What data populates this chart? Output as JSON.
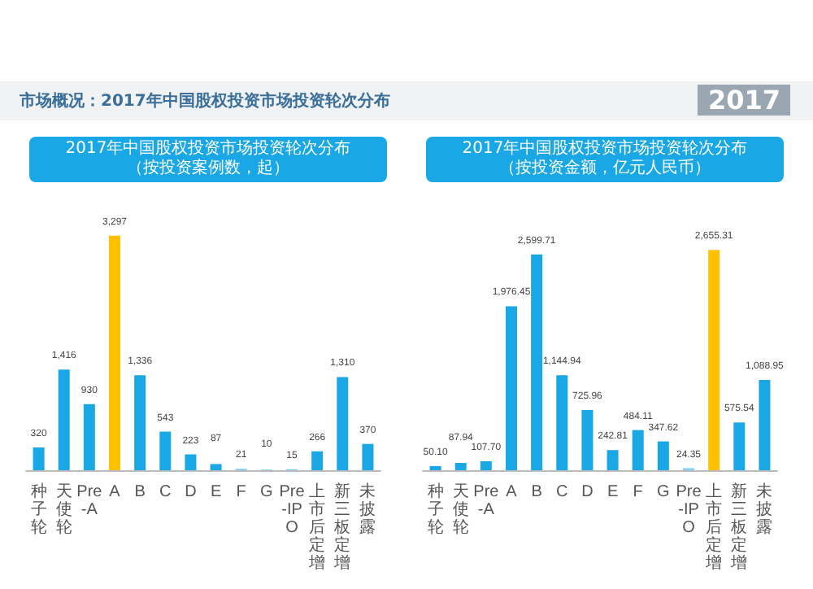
{
  "chart_data": [
    {
      "type": "bar",
      "title": "2017年中国股权投资市场投资轮次分布",
      "subtitle": "（按投资案例数，起）",
      "annotations": [
        "市场概况：2017年中国股权投资市场投资轮次分布",
        "2017"
      ],
      "categories": [
        "种子轮",
        "天使轮",
        "Pre-A",
        "A",
        "B",
        "C",
        "D",
        "E",
        "F",
        "G",
        "Pre-IPO",
        "上市后定增",
        "新三板定增",
        "未披露"
      ],
      "values": [
        320,
        1416,
        930,
        3297,
        1336,
        543,
        223,
        87,
        21,
        10,
        15,
        266,
        1310,
        370
      ],
      "colors": [
        "#1aa7e6",
        "#1aa7e6",
        "#1aa7e6",
        "#ffc000",
        "#1aa7e6",
        "#1aa7e6",
        "#1aa7e6",
        "#1aa7e6",
        "#7fd0f2",
        "#7fd0f2",
        "#7fd0f2",
        "#1aa7e6",
        "#1aa7e6",
        "#1aa7e6"
      ],
      "value_labels": [
        "320",
        "1,416",
        "930",
        "3,297",
        "1,336",
        "543",
        "223",
        "87",
        "21",
        "10",
        "15",
        "266",
        "1,310",
        "370"
      ]
    },
    {
      "type": "bar",
      "title": "2017年中国股权投资市场投资轮次分布",
      "subtitle": "（按投资金额，亿元人民币）",
      "categories": [
        "种子轮",
        "天使轮",
        "Pre-A",
        "A",
        "B",
        "C",
        "D",
        "E",
        "F",
        "G",
        "Pre-IPO",
        "上市后定增",
        "新三板定增",
        "未披露"
      ],
      "values": [
        50.1,
        87.94,
        107.7,
        1976.45,
        2599.71,
        1144.94,
        725.96,
        242.81,
        484.11,
        347.62,
        24.35,
        2655.31,
        575.54,
        1088.95
      ],
      "colors": [
        "#1aa7e6",
        "#1aa7e6",
        "#1aa7e6",
        "#1aa7e6",
        "#1aa7e6",
        "#1aa7e6",
        "#1aa7e6",
        "#1aa7e6",
        "#1aa7e6",
        "#1aa7e6",
        "#7fd0f2",
        "#ffc000",
        "#1aa7e6",
        "#1aa7e6"
      ],
      "value_labels": [
        "50.10",
        "87.94",
        "107.70",
        "1,976.45",
        "2,599.71",
        "1,144.94",
        "725.96",
        "242.81",
        "484.11",
        "347.62",
        "24.35",
        "2,655.31",
        "575.54",
        "1,088.95"
      ]
    }
  ]
}
